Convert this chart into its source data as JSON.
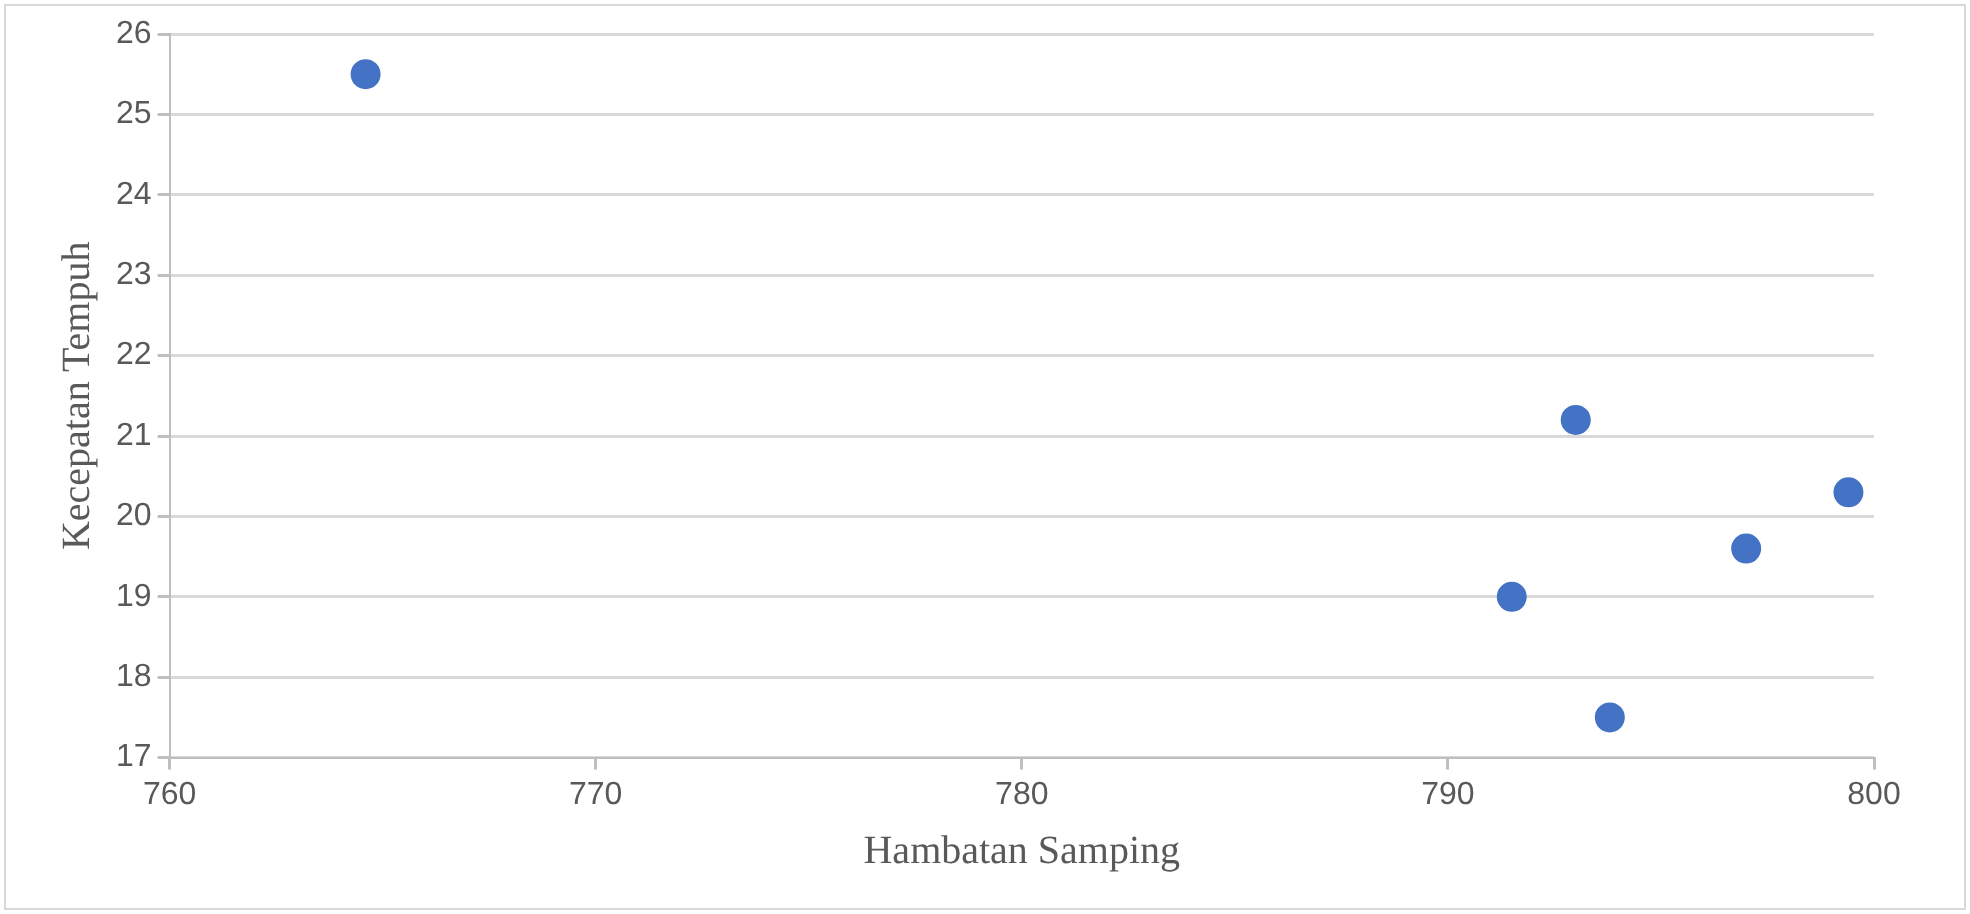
{
  "chart_data": {
    "type": "scatter",
    "xlabel": "Hambatan Samping",
    "ylabel": "Kecepatan Tempuh",
    "series": [
      {
        "color": "#4472c4",
        "x": [
          764.6,
          793.0,
          799.4,
          797.0,
          791.5,
          793.8
        ],
        "values": [
          25.5,
          21.2,
          20.3,
          19.6,
          19.0,
          17.5
        ]
      }
    ],
    "xlim": [
      760,
      800
    ],
    "xticks": [
      760,
      770,
      780,
      790,
      800
    ],
    "ylim": [
      17,
      26
    ],
    "yticks": [
      17,
      18,
      19,
      20,
      21,
      22,
      23,
      24,
      25,
      26
    ],
    "grid": "y",
    "marker": "circle"
  }
}
